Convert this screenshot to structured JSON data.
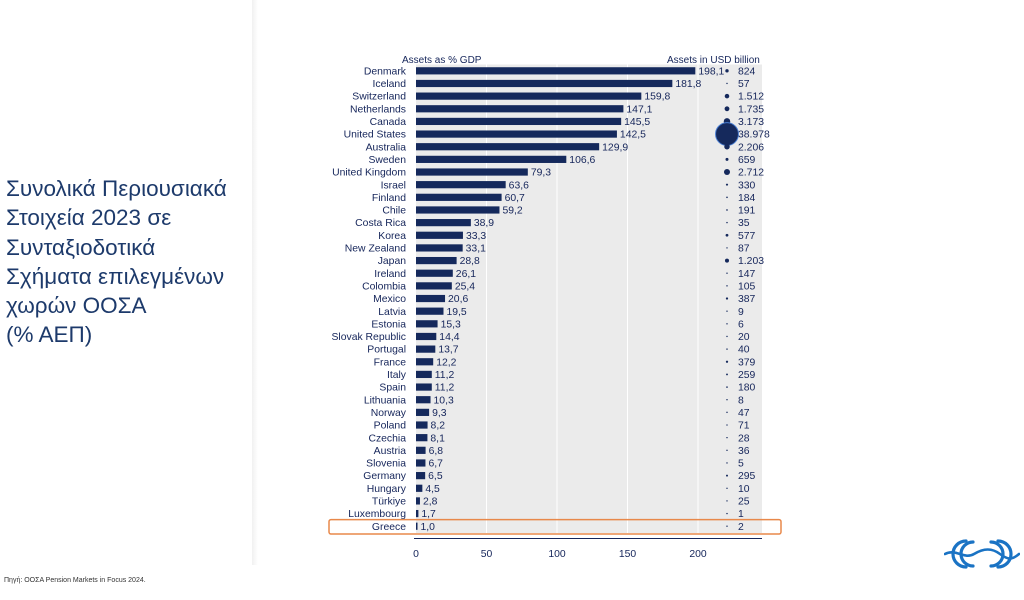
{
  "slide": {
    "title_lines": [
      "Συνολικά Περιουσιακά",
      "Στοιχεία 2023 σε",
      "Συνταξιοδοτικά",
      "Σχήματα επιλεγμένων",
      "χωρών ΟΟΣΑ",
      "(% ΑΕΠ)"
    ],
    "source": "Πηγή: ΟΟΣΑ Pension Markets in Focus 2024.",
    "logo_icon": "company-logo-icon"
  },
  "chart_data": {
    "type": "bar",
    "orientation": "horizontal",
    "header_left": "Assets as % GDP",
    "header_right": "Assets in USD billion",
    "categories": [
      "Denmark",
      "Iceland",
      "Switzerland",
      "Netherlands",
      "Canada",
      "United States",
      "Australia",
      "Sweden",
      "United Kingdom",
      "Israel",
      "Finland",
      "Chile",
      "Costa Rica",
      "Korea",
      "New Zealand",
      "Japan",
      "Ireland",
      "Colombia",
      "Mexico",
      "Latvia",
      "Estonia",
      "Slovak Republic",
      "Portugal",
      "France",
      "Italy",
      "Spain",
      "Lithuania",
      "Norway",
      "Poland",
      "Czechia",
      "Austria",
      "Slovenia",
      "Germany",
      "Hungary",
      "Türkiye",
      "Luxembourg",
      "Greece"
    ],
    "values": [
      198.1,
      181.8,
      159.8,
      147.1,
      145.5,
      142.5,
      129.9,
      106.6,
      79.3,
      63.6,
      60.7,
      59.2,
      38.9,
      33.3,
      33.1,
      28.8,
      26.1,
      25.4,
      20.6,
      19.5,
      15.3,
      14.4,
      13.7,
      12.2,
      11.2,
      11.2,
      10.3,
      9.3,
      8.2,
      8.1,
      6.8,
      6.7,
      6.5,
      4.5,
      2.8,
      1.7,
      1.0
    ],
    "value_labels": [
      "198,1",
      "181,8",
      "159,8",
      "147,1",
      "145,5",
      "142,5",
      "129,9",
      "106,6",
      "79,3",
      "63,6",
      "60,7",
      "59,2",
      "38,9",
      "33,3",
      "33,1",
      "28,8",
      "26,1",
      "25,4",
      "20,6",
      "19,5",
      "15,3",
      "14,4",
      "13,7",
      "12,2",
      "11,2",
      "11,2",
      "10,3",
      "9,3",
      "8,2",
      "8,1",
      "6,8",
      "6,7",
      "6,5",
      "4,5",
      "2,8",
      "1,7",
      "1,0"
    ],
    "usd_billion": [
      824,
      57,
      1512,
      1735,
      3173,
      38978,
      2206,
      659,
      2712,
      330,
      184,
      191,
      35,
      577,
      87,
      1203,
      147,
      105,
      387,
      9,
      6,
      20,
      40,
      379,
      259,
      180,
      8,
      47,
      71,
      28,
      36,
      5,
      295,
      10,
      25,
      1,
      2
    ],
    "usd_labels": [
      "824",
      "57",
      "1.512",
      "1.735",
      "3.173",
      "38.978",
      "2.206",
      "659",
      "2.712",
      "330",
      "184",
      "191",
      "35",
      "577",
      "87",
      "1.203",
      "147",
      "105",
      "387",
      "9",
      "6",
      "20",
      "40",
      "379",
      "259",
      "180",
      "8",
      "47",
      "71",
      "28",
      "36",
      "5",
      "295",
      "10",
      "25",
      "1",
      "2"
    ],
    "xticks": [
      0,
      50,
      100,
      150,
      200
    ],
    "xtick_labels": [
      "0",
      "50",
      "100",
      "150",
      "200"
    ],
    "xlim": [
      0,
      245
    ],
    "highlight": "Greece",
    "colors": {
      "bar": "#15295c",
      "background": "#ebebeb",
      "highlight": "#e8884a",
      "text": "#15255a"
    }
  }
}
